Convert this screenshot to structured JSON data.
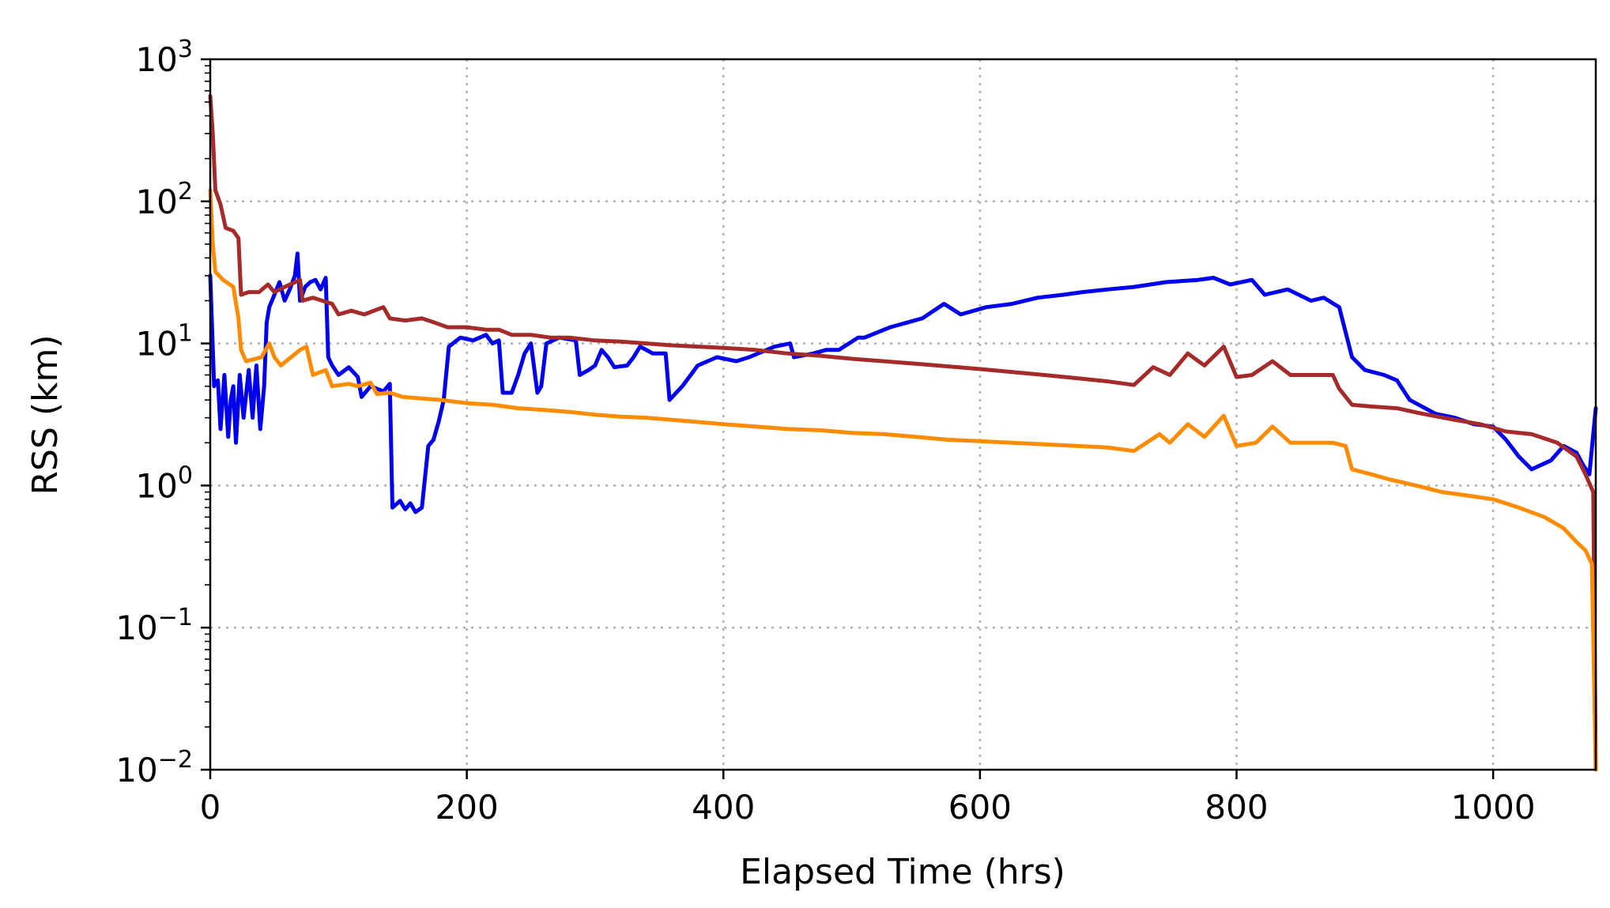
{
  "chart_data": {
    "type": "line",
    "xlabel": "Elapsed Time (hrs)",
    "ylabel": "RSS (km)",
    "x_scale": "linear",
    "y_scale": "log",
    "xlim": [
      0,
      1080
    ],
    "ylim": [
      0.01,
      1000
    ],
    "grid": true,
    "x_ticks": [
      {
        "value": 0,
        "label": "0"
      },
      {
        "value": 200,
        "label": "200"
      },
      {
        "value": 400,
        "label": "400"
      },
      {
        "value": 600,
        "label": "600"
      },
      {
        "value": 800,
        "label": "800"
      },
      {
        "value": 1000,
        "label": "1000"
      }
    ],
    "y_ticks": [
      {
        "value": 0.01,
        "base": "10",
        "exp": "−2"
      },
      {
        "value": 0.1,
        "base": "10",
        "exp": "−1"
      },
      {
        "value": 1,
        "base": "10",
        "exp": "0"
      },
      {
        "value": 10,
        "base": "10",
        "exp": "1"
      },
      {
        "value": 100,
        "base": "10",
        "exp": "2"
      },
      {
        "value": 1000,
        "base": "10",
        "exp": "3"
      }
    ],
    "series": [
      {
        "color": "#0000ee",
        "points": [
          [
            0,
            30
          ],
          [
            3,
            5
          ],
          [
            6,
            5.5
          ],
          [
            8,
            2.5
          ],
          [
            11,
            6
          ],
          [
            14,
            2.2
          ],
          [
            16,
            4
          ],
          [
            18,
            5
          ],
          [
            20,
            2
          ],
          [
            23,
            6
          ],
          [
            26,
            3
          ],
          [
            30,
            6.5
          ],
          [
            33,
            3
          ],
          [
            36,
            7
          ],
          [
            39,
            2.5
          ],
          [
            42,
            5
          ],
          [
            44,
            14
          ],
          [
            46,
            18
          ],
          [
            50,
            22
          ],
          [
            54,
            27
          ],
          [
            58,
            20
          ],
          [
            62,
            24
          ],
          [
            66,
            30
          ],
          [
            68,
            43
          ],
          [
            70,
            20
          ],
          [
            74,
            25
          ],
          [
            78,
            27
          ],
          [
            82,
            28
          ],
          [
            86,
            24
          ],
          [
            90,
            29
          ],
          [
            92,
            8
          ],
          [
            95,
            7
          ],
          [
            100,
            6
          ],
          [
            108,
            6.8
          ],
          [
            115,
            5.8
          ],
          [
            118,
            4.2
          ],
          [
            125,
            5
          ],
          [
            135,
            4.6
          ],
          [
            140,
            5.2
          ],
          [
            142,
            0.7
          ],
          [
            148,
            0.78
          ],
          [
            152,
            0.68
          ],
          [
            156,
            0.75
          ],
          [
            160,
            0.65
          ],
          [
            165,
            0.7
          ],
          [
            170,
            1.9
          ],
          [
            174,
            2.1
          ],
          [
            178,
            2.8
          ],
          [
            182,
            4
          ],
          [
            186,
            9.5
          ],
          [
            195,
            11
          ],
          [
            205,
            10.5
          ],
          [
            215,
            11.5
          ],
          [
            220,
            10
          ],
          [
            225,
            10.5
          ],
          [
            228,
            4.5
          ],
          [
            235,
            4.5
          ],
          [
            240,
            6
          ],
          [
            245,
            8.5
          ],
          [
            250,
            10
          ],
          [
            255,
            4.5
          ],
          [
            258,
            5
          ],
          [
            262,
            10
          ],
          [
            272,
            11
          ],
          [
            285,
            10.5
          ],
          [
            288,
            6
          ],
          [
            295,
            6.5
          ],
          [
            300,
            7
          ],
          [
            305,
            9
          ],
          [
            310,
            8
          ],
          [
            315,
            6.8
          ],
          [
            325,
            7
          ],
          [
            330,
            8
          ],
          [
            335,
            9.5
          ],
          [
            345,
            8.5
          ],
          [
            355,
            8.5
          ],
          [
            358,
            4
          ],
          [
            368,
            5
          ],
          [
            380,
            7
          ],
          [
            395,
            8
          ],
          [
            410,
            7.5
          ],
          [
            420,
            8
          ],
          [
            440,
            9.5
          ],
          [
            452,
            10
          ],
          [
            455,
            8
          ],
          [
            470,
            8.5
          ],
          [
            480,
            9
          ],
          [
            490,
            9
          ],
          [
            505,
            11
          ],
          [
            510,
            11
          ],
          [
            530,
            13
          ],
          [
            555,
            15
          ],
          [
            572,
            19
          ],
          [
            585,
            16
          ],
          [
            605,
            18
          ],
          [
            625,
            19
          ],
          [
            645,
            21
          ],
          [
            665,
            22
          ],
          [
            680,
            23
          ],
          [
            700,
            24
          ],
          [
            720,
            25
          ],
          [
            745,
            27
          ],
          [
            770,
            28
          ],
          [
            782,
            29
          ],
          [
            795,
            26
          ],
          [
            812,
            28
          ],
          [
            822,
            22
          ],
          [
            840,
            24
          ],
          [
            858,
            20
          ],
          [
            868,
            21
          ],
          [
            880,
            18
          ],
          [
            890,
            8
          ],
          [
            900,
            6.5
          ],
          [
            915,
            6
          ],
          [
            925,
            5.5
          ],
          [
            935,
            4
          ],
          [
            955,
            3.2
          ],
          [
            970,
            3
          ],
          [
            985,
            2.7
          ],
          [
            1000,
            2.6
          ],
          [
            1010,
            2.1
          ],
          [
            1020,
            1.6
          ],
          [
            1030,
            1.3
          ],
          [
            1045,
            1.5
          ],
          [
            1055,
            1.9
          ],
          [
            1065,
            1.7
          ],
          [
            1070,
            1.4
          ],
          [
            1075,
            1.2
          ],
          [
            1080,
            3.5
          ]
        ]
      },
      {
        "color": "#a52a2a",
        "points": [
          [
            0,
            550
          ],
          [
            2,
            300
          ],
          [
            4,
            120
          ],
          [
            8,
            95
          ],
          [
            12,
            65
          ],
          [
            18,
            62
          ],
          [
            22,
            55
          ],
          [
            24,
            22
          ],
          [
            30,
            23
          ],
          [
            38,
            23
          ],
          [
            45,
            26
          ],
          [
            50,
            23
          ],
          [
            58,
            25
          ],
          [
            70,
            28
          ],
          [
            72,
            20
          ],
          [
            80,
            21
          ],
          [
            95,
            19
          ],
          [
            100,
            16
          ],
          [
            110,
            17
          ],
          [
            120,
            16
          ],
          [
            135,
            18
          ],
          [
            140,
            15
          ],
          [
            152,
            14.5
          ],
          [
            165,
            15
          ],
          [
            175,
            14
          ],
          [
            185,
            13
          ],
          [
            200,
            13
          ],
          [
            215,
            12.5
          ],
          [
            225,
            12.5
          ],
          [
            235,
            11.5
          ],
          [
            250,
            11.5
          ],
          [
            265,
            11
          ],
          [
            280,
            11
          ],
          [
            300,
            10.5
          ],
          [
            320,
            10.3
          ],
          [
            340,
            10
          ],
          [
            360,
            9.7
          ],
          [
            380,
            9.5
          ],
          [
            400,
            9.3
          ],
          [
            425,
            9
          ],
          [
            450,
            8.5
          ],
          [
            475,
            8.2
          ],
          [
            500,
            7.8
          ],
          [
            525,
            7.5
          ],
          [
            550,
            7.2
          ],
          [
            575,
            6.9
          ],
          [
            600,
            6.6
          ],
          [
            625,
            6.3
          ],
          [
            650,
            6
          ],
          [
            675,
            5.7
          ],
          [
            700,
            5.4
          ],
          [
            720,
            5.1
          ],
          [
            735,
            6.8
          ],
          [
            748,
            6
          ],
          [
            762,
            8.5
          ],
          [
            775,
            7
          ],
          [
            790,
            9.5
          ],
          [
            800,
            5.8
          ],
          [
            812,
            6
          ],
          [
            828,
            7.5
          ],
          [
            842,
            6
          ],
          [
            858,
            6
          ],
          [
            875,
            6
          ],
          [
            880,
            4.8
          ],
          [
            890,
            3.7
          ],
          [
            905,
            3.6
          ],
          [
            925,
            3.5
          ],
          [
            945,
            3.2
          ],
          [
            970,
            2.9
          ],
          [
            990,
            2.7
          ],
          [
            1010,
            2.4
          ],
          [
            1030,
            2.3
          ],
          [
            1050,
            2
          ],
          [
            1065,
            1.6
          ],
          [
            1072,
            1.2
          ],
          [
            1078,
            0.9
          ],
          [
            1080,
            0.01
          ]
        ]
      },
      {
        "color": "#ff8c00",
        "points": [
          [
            0,
            120
          ],
          [
            2,
            50
          ],
          [
            4,
            32
          ],
          [
            10,
            28
          ],
          [
            18,
            25
          ],
          [
            22,
            15
          ],
          [
            24,
            9
          ],
          [
            28,
            7.5
          ],
          [
            40,
            8
          ],
          [
            46,
            10
          ],
          [
            50,
            8
          ],
          [
            55,
            7
          ],
          [
            70,
            9
          ],
          [
            75,
            9.5
          ],
          [
            80,
            6
          ],
          [
            90,
            6.5
          ],
          [
            95,
            5
          ],
          [
            108,
            5.2
          ],
          [
            115,
            5
          ],
          [
            125,
            5.3
          ],
          [
            130,
            4.4
          ],
          [
            140,
            4.5
          ],
          [
            150,
            4.2
          ],
          [
            165,
            4.1
          ],
          [
            180,
            4
          ],
          [
            200,
            3.8
          ],
          [
            220,
            3.7
          ],
          [
            240,
            3.5
          ],
          [
            260,
            3.4
          ],
          [
            280,
            3.3
          ],
          [
            300,
            3.15
          ],
          [
            320,
            3.05
          ],
          [
            340,
            3
          ],
          [
            360,
            2.9
          ],
          [
            380,
            2.8
          ],
          [
            400,
            2.7
          ],
          [
            425,
            2.6
          ],
          [
            450,
            2.5
          ],
          [
            475,
            2.45
          ],
          [
            500,
            2.35
          ],
          [
            525,
            2.3
          ],
          [
            550,
            2.2
          ],
          [
            575,
            2.1
          ],
          [
            600,
            2.05
          ],
          [
            625,
            2
          ],
          [
            650,
            1.95
          ],
          [
            675,
            1.9
          ],
          [
            700,
            1.85
          ],
          [
            720,
            1.75
          ],
          [
            740,
            2.3
          ],
          [
            748,
            2
          ],
          [
            762,
            2.7
          ],
          [
            775,
            2.2
          ],
          [
            790,
            3.1
          ],
          [
            800,
            1.9
          ],
          [
            815,
            2
          ],
          [
            828,
            2.6
          ],
          [
            842,
            2
          ],
          [
            858,
            2
          ],
          [
            875,
            2
          ],
          [
            885,
            1.9
          ],
          [
            890,
            1.3
          ],
          [
            905,
            1.2
          ],
          [
            920,
            1.1
          ],
          [
            940,
            1
          ],
          [
            960,
            0.9
          ],
          [
            980,
            0.85
          ],
          [
            1000,
            0.8
          ],
          [
            1020,
            0.7
          ],
          [
            1040,
            0.6
          ],
          [
            1055,
            0.5
          ],
          [
            1065,
            0.4
          ],
          [
            1072,
            0.35
          ],
          [
            1077,
            0.28
          ],
          [
            1080,
            0.01
          ]
        ]
      }
    ]
  }
}
